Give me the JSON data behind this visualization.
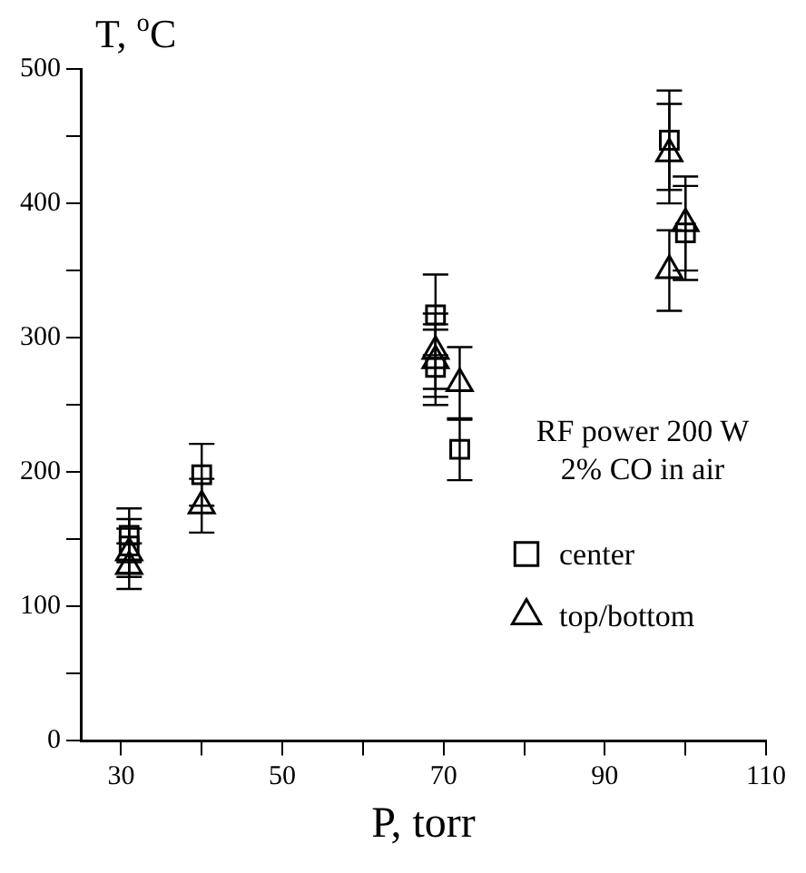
{
  "chart_data": {
    "type": "scatter",
    "xlabel": "P, torr",
    "ylabel": "T, $^{o}$C",
    "annotations": [
      "RF power 200 W",
      "2% CO in air"
    ],
    "xlim": [
      25,
      110
    ],
    "xticks": [
      30,
      {
        "value": 40,
        "label": null
      },
      50,
      {
        "value": 60,
        "label": null
      },
      70,
      {
        "value": 80,
        "label": null
      },
      90,
      {
        "value": 100,
        "label": null
      },
      110
    ],
    "ylim": [
      0,
      500
    ],
    "yticks": [
      0,
      {
        "value": 50,
        "label": null
      },
      100,
      {
        "value": 150,
        "label": null
      },
      200,
      {
        "value": 250,
        "label": null
      },
      300,
      {
        "value": 350,
        "label": null
      },
      400,
      {
        "value": 450,
        "label": null
      },
      500
    ],
    "grid": false,
    "legend": "bottom right",
    "series": [
      {
        "name": "center",
        "color": "#000000",
        "marker": "square",
        "x": [
          31,
          31,
          40,
          69,
          69,
          72,
          98,
          100
        ],
        "values": [
          153,
          145,
          198,
          317,
          278,
          217,
          447,
          378
        ],
        "errors": [
          20,
          20,
          23,
          30,
          28,
          23,
          37,
          35
        ]
      },
      {
        "name": "top/bottom",
        "color": "#000000",
        "marker": "triangle",
        "x": [
          31,
          31,
          40,
          69,
          69,
          72,
          98,
          98,
          100
        ],
        "values": [
          140,
          130,
          175,
          290,
          283,
          266,
          437,
          350,
          385
        ],
        "errors": [
          18,
          17,
          20,
          28,
          27,
          27,
          37,
          30,
          35
        ]
      }
    ]
  }
}
